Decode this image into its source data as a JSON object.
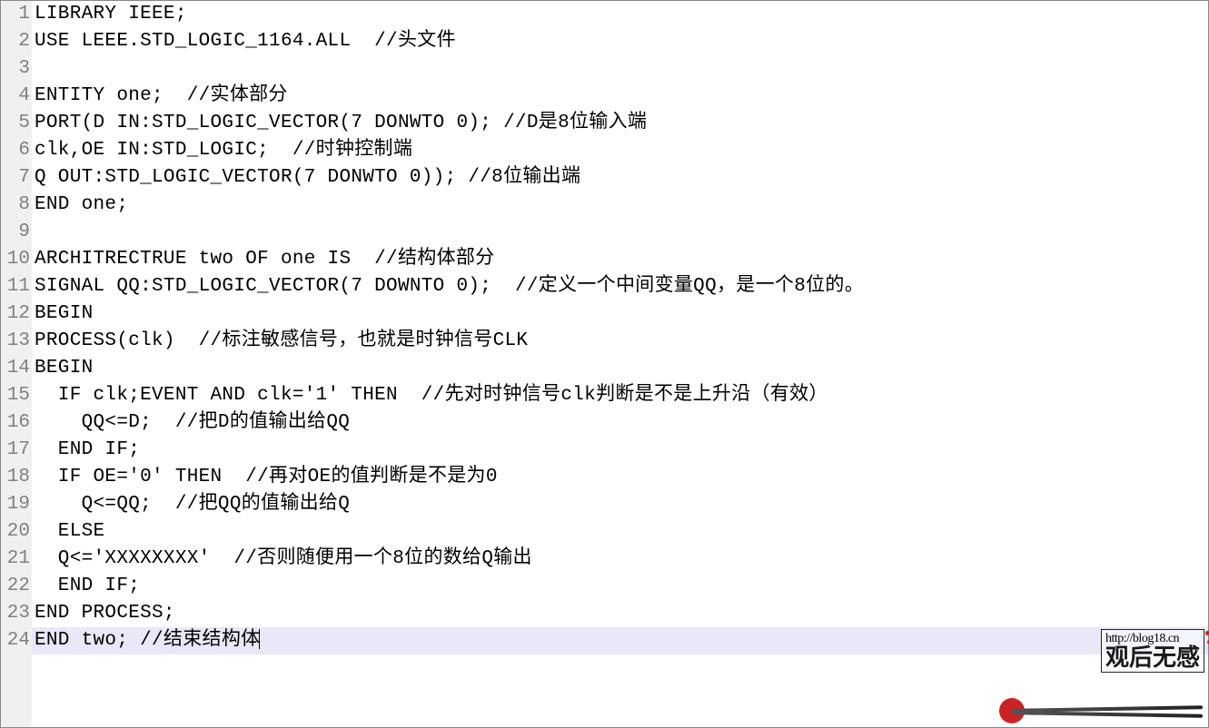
{
  "editor": {
    "font_family": "Courier New",
    "code_fontsize": 21,
    "line_height": 30,
    "gutter_bg": "#f0f0f0",
    "gutter_fg": "#808080",
    "code_bg": "#ffffff",
    "code_fg": "#000000",
    "highlight_bg": "#e8e8f8",
    "border_color": "#888888",
    "highlighted_line_index": 23,
    "cursor_visible": true,
    "lines": [
      {
        "num": "1",
        "text": "LIBRARY IEEE;"
      },
      {
        "num": "2",
        "text": "USE LEEE.STD_LOGIC_1164.ALL  //头文件"
      },
      {
        "num": "3",
        "text": ""
      },
      {
        "num": "4",
        "text": "ENTITY one;  //实体部分"
      },
      {
        "num": "5",
        "text": "PORT(D IN:STD_LOGIC_VECTOR(7 DONWTO 0); //D是8位输入端"
      },
      {
        "num": "6",
        "text": "clk,OE IN:STD_LOGIC;  //时钟控制端"
      },
      {
        "num": "7",
        "text": "Q OUT:STD_LOGIC_VECTOR(7 DONWTO 0)); //8位输出端"
      },
      {
        "num": "8",
        "text": "END one;"
      },
      {
        "num": "9",
        "text": ""
      },
      {
        "num": "10",
        "text": "ARCHITRECTRUE two OF one IS  //结构体部分"
      },
      {
        "num": "11",
        "text": "SIGNAL QQ:STD_LOGIC_VECTOR(7 DOWNTO 0);  //定义一个中间变量QQ，是一个8位的。"
      },
      {
        "num": "12",
        "text": "BEGIN"
      },
      {
        "num": "13",
        "text": "PROCESS(clk)  //标注敏感信号，也就是时钟信号CLK"
      },
      {
        "num": "14",
        "text": "BEGIN"
      },
      {
        "num": "15",
        "text": "  IF clk;EVENT AND clk='1' THEN  //先对时钟信号clk判断是不是上升沿（有效）"
      },
      {
        "num": "16",
        "text": "    QQ<=D;  //把D的值输出给QQ"
      },
      {
        "num": "17",
        "text": "  END IF;"
      },
      {
        "num": "18",
        "text": "  IF OE='0' THEN  //再对OE的值判断是不是为0"
      },
      {
        "num": "19",
        "text": "    Q<=QQ;  //把QQ的值输出给Q"
      },
      {
        "num": "20",
        "text": "  ELSE"
      },
      {
        "num": "21",
        "text": "  Q<='XXXXXXXX'  //否则随便用一个8位的数给Q输出"
      },
      {
        "num": "22",
        "text": "  END IF;"
      },
      {
        "num": "23",
        "text": "END PROCESS;"
      },
      {
        "num": "24",
        "text": "END two; //结束结构体"
      }
    ]
  },
  "watermark": {
    "url": "http://blog18.cn",
    "text": "观后无感",
    "dot_color": "#cc2222",
    "box_border": "#222222",
    "chopstick_color": "#333333",
    "circle_color": "#cc2222"
  }
}
